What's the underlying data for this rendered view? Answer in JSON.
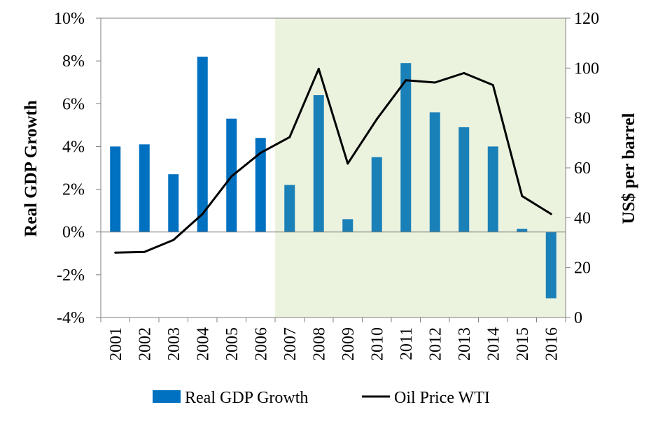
{
  "chart_data": {
    "type": "bar+line",
    "categories": [
      "2001",
      "2002",
      "2003",
      "2004",
      "2005",
      "2006",
      "2007",
      "2008",
      "2009",
      "2010",
      "2011",
      "2012",
      "2013",
      "2014",
      "2015",
      "2016"
    ],
    "series": [
      {
        "name": "Real GDP Growth",
        "type": "bar",
        "axis": "left",
        "unit": "%",
        "values": [
          4.0,
          4.1,
          2.7,
          8.2,
          5.3,
          4.4,
          2.2,
          6.4,
          0.6,
          3.5,
          7.9,
          5.6,
          4.9,
          4.0,
          0.15,
          -3.1
        ]
      },
      {
        "name": "Oil Price WTI",
        "type": "line",
        "axis": "right",
        "unit": "US$ per barrel",
        "values": [
          26,
          26.3,
          31.1,
          41.5,
          56.6,
          66,
          72.3,
          99.7,
          61.7,
          79.5,
          95.1,
          94.2,
          98,
          93.2,
          48.7,
          41.5
        ]
      }
    ],
    "y_left": {
      "label": "Real GDP Growth",
      "min": -4,
      "max": 10,
      "step": 2,
      "tick_labels": [
        "-4%",
        "-2%",
        "0%",
        "2%",
        "4%",
        "6%",
        "8%",
        "10%"
      ]
    },
    "y_right": {
      "label": "US$ per barrel",
      "min": 0,
      "max": 120,
      "step": 20,
      "tick_labels": [
        "0",
        "20",
        "40",
        "60",
        "80",
        "100",
        "120"
      ]
    },
    "shaded_region": {
      "from_category": "2007",
      "to_category": "2016",
      "color": "#ebf3df"
    },
    "legend": {
      "position": "bottom",
      "entries": [
        "Real GDP Growth",
        "Oil Price WTI"
      ]
    },
    "colors": {
      "bar_before": "#0070c0",
      "bar_after": "#1a80b8",
      "line": "#000000"
    }
  }
}
